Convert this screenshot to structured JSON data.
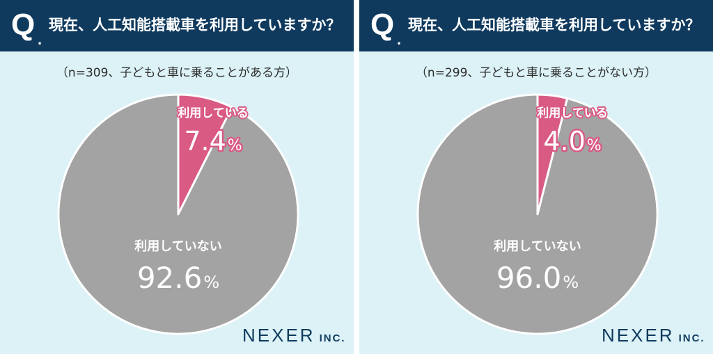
{
  "colors": {
    "header_bg": "#0f3a5e",
    "panel_bg": "#dcf2f7",
    "slice_using": "#d95b84",
    "slice_not_using": "#a3a3a3",
    "label_using_fill": "#ffffff",
    "label_using_stroke": "#d95b84",
    "label_not_using": "#ffffff"
  },
  "panels": [
    {
      "q_letter": "Q",
      "question": "現在、人工知能搭載車を利用していますか？",
      "sample_label": "（n=309、子どもと車に乗ることがある方）",
      "logo": "NEXER",
      "logo_suffix": "INC."
    },
    {
      "q_letter": "Q",
      "question": "現在、人工知能搭載車を利用していますか？",
      "sample_label": "（n=299、子どもと車に乗ることがない方）",
      "logo": "NEXER",
      "logo_suffix": "INC."
    }
  ],
  "chart_data": [
    {
      "type": "pie",
      "title": "現在、人工知能搭載車を利用していますか？",
      "subtitle": "（n=309、子どもと車に乗ることがある方）",
      "unit": "%",
      "slices": [
        {
          "label": "利用している",
          "value": 7.4,
          "value_text": "7.4",
          "color": "#d95b84"
        },
        {
          "label": "利用していない",
          "value": 92.6,
          "value_text": "92.6",
          "color": "#a3a3a3"
        }
      ]
    },
    {
      "type": "pie",
      "title": "現在、人工知能搭載車を利用していますか？",
      "subtitle": "（n=299、子どもと車に乗ることがない方）",
      "unit": "%",
      "slices": [
        {
          "label": "利用している",
          "value": 4.0,
          "value_text": "4.0",
          "color": "#d95b84"
        },
        {
          "label": "利用していない",
          "value": 96.0,
          "value_text": "96.0",
          "color": "#a3a3a3"
        }
      ]
    }
  ]
}
